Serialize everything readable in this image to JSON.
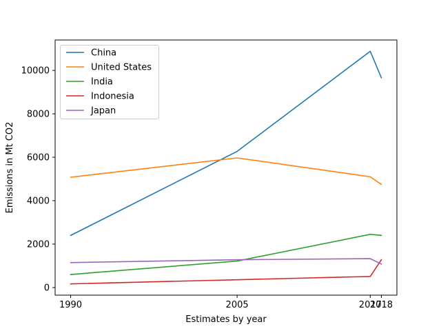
{
  "chart_data": {
    "type": "line",
    "xlabel": "Estimates by year",
    "ylabel": "Emissions in Mt CO2",
    "x": [
      1990,
      2005,
      2017,
      2018
    ],
    "x_ticks": [
      1990,
      2005,
      2017,
      2018
    ],
    "x_tick_labels": [
      "1990",
      "2005",
      "2017",
      "2018"
    ],
    "xlim": [
      1988.6,
      2019.4
    ],
    "ylim": [
      -350,
      11400
    ],
    "y_ticks": [
      0,
      2000,
      4000,
      6000,
      8000,
      10000
    ],
    "y_tick_labels": [
      "0",
      "2000",
      "4000",
      "6000",
      "8000",
      "10000"
    ],
    "grid": false,
    "legend_position": "upper-left",
    "series": [
      {
        "name": "China",
        "color": "#1f77b4",
        "values": [
          2400,
          6270,
          10880,
          9660
        ]
      },
      {
        "name": "United States",
        "color": "#ff7f0e",
        "values": [
          5080,
          5970,
          5100,
          4750
        ]
      },
      {
        "name": "India",
        "color": "#2ca02c",
        "values": [
          600,
          1220,
          2450,
          2400
        ]
      },
      {
        "name": "Indonesia",
        "color": "#d62728",
        "values": [
          170,
          360,
          510,
          1280
        ]
      },
      {
        "name": "Japan",
        "color": "#9467bd",
        "values": [
          1150,
          1280,
          1330,
          1080
        ]
      }
    ]
  }
}
